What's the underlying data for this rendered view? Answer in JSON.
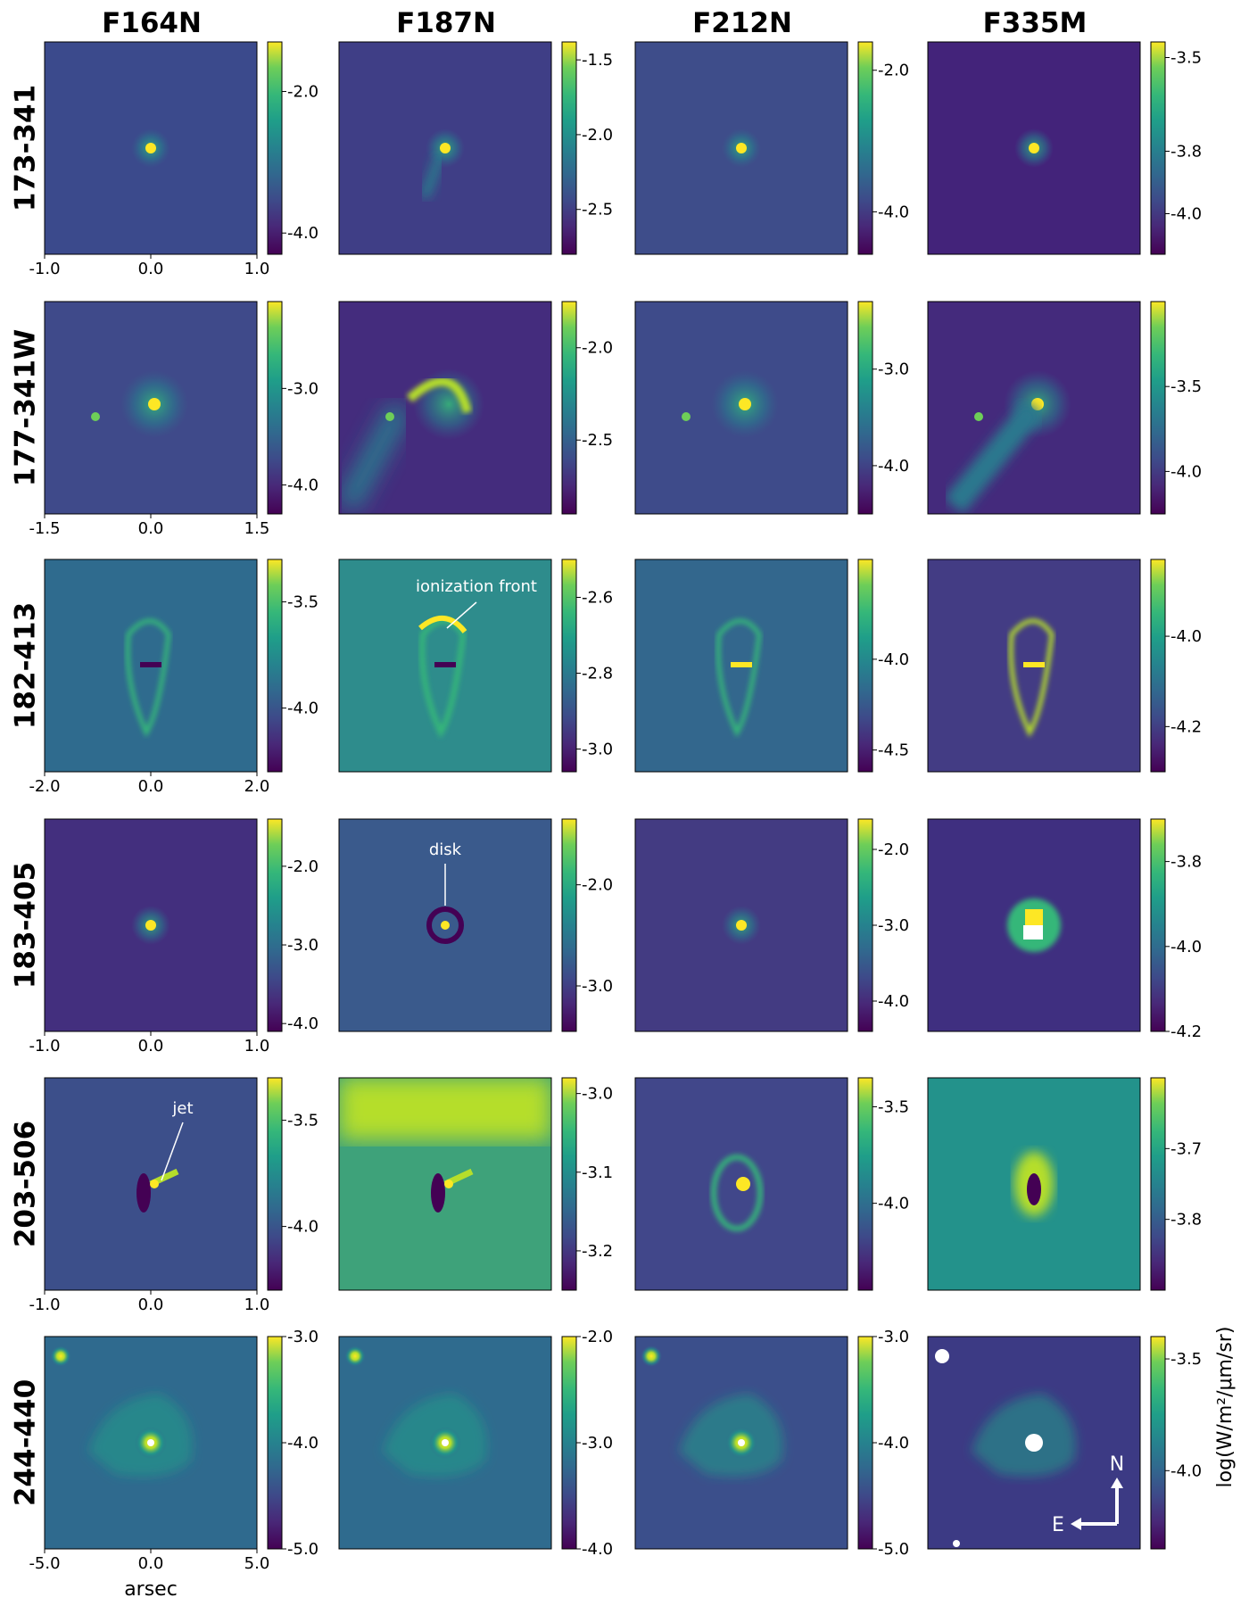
{
  "colorbar_label": "log(W/m²/μm/sr)",
  "x_axis_label": "arsec",
  "compass": {
    "north": "N",
    "east": "E"
  },
  "chart_data": {
    "type": "heatmap",
    "columns": [
      "F164N",
      "F187N",
      "F212N",
      "F335M"
    ],
    "rows": [
      {
        "name": "173-341",
        "xticks": [
          "-1.0",
          "0.0",
          "1.0"
        ],
        "panels": [
          {
            "filter": "F164N",
            "colorbar_ticks": [
              "-2.0",
              "-4.0"
            ],
            "range": [
              -4.3,
              -1.3
            ]
          },
          {
            "filter": "F187N",
            "colorbar_ticks": [
              "-1.5",
              "-2.0",
              "-2.5"
            ],
            "range": [
              -2.8,
              -1.38
            ]
          },
          {
            "filter": "F212N",
            "colorbar_ticks": [
              "-2.0",
              "-4.0"
            ],
            "range": [
              -4.6,
              -1.6
            ]
          },
          {
            "filter": "F335M",
            "colorbar_ticks": [
              "-3.5",
              "-3.8",
              "-4.0"
            ],
            "range": [
              -4.13,
              -3.45
            ]
          }
        ]
      },
      {
        "name": "177-341W",
        "xticks": [
          "-1.5",
          "0.0",
          "1.5"
        ],
        "panels": [
          {
            "filter": "F164N",
            "colorbar_ticks": [
              "-3.0",
              "-4.0"
            ],
            "range": [
              -4.3,
              -2.1
            ]
          },
          {
            "filter": "F187N",
            "colorbar_ticks": [
              "-2.0",
              "-2.5"
            ],
            "range": [
              -2.9,
              -1.75
            ]
          },
          {
            "filter": "F212N",
            "colorbar_ticks": [
              "-3.0",
              "-4.0"
            ],
            "range": [
              -4.5,
              -2.3
            ]
          },
          {
            "filter": "F335M",
            "colorbar_ticks": [
              "-3.5",
              "-4.0"
            ],
            "range": [
              -4.25,
              -3.0
            ]
          }
        ]
      },
      {
        "name": "182-413",
        "xticks": [
          "-2.0",
          "0.0",
          "2.0"
        ],
        "panels": [
          {
            "filter": "F164N",
            "colorbar_ticks": [
              "-3.5",
              "-4.0"
            ],
            "range": [
              -4.3,
              -3.3
            ]
          },
          {
            "filter": "F187N",
            "colorbar_ticks": [
              "-2.6",
              "-2.8",
              "-3.0"
            ],
            "range": [
              -3.06,
              -2.5
            ]
          },
          {
            "filter": "F212N",
            "colorbar_ticks": [
              "-4.0",
              "-4.5"
            ],
            "range": [
              -4.62,
              -3.45
            ]
          },
          {
            "filter": "F335M",
            "colorbar_ticks": [
              "-4.0",
              "-4.2"
            ],
            "range": [
              -4.3,
              -3.83
            ]
          }
        ],
        "annotation": {
          "panel": "F187N",
          "text": "ionization front"
        }
      },
      {
        "name": "183-405",
        "xticks": [
          "-1.0",
          "0.0",
          "1.0"
        ],
        "panels": [
          {
            "filter": "F164N",
            "colorbar_ticks": [
              "-2.0",
              "-3.0",
              "-4.0"
            ],
            "range": [
              -4.1,
              -1.4
            ]
          },
          {
            "filter": "F187N",
            "colorbar_ticks": [
              "-2.0",
              "-3.0"
            ],
            "range": [
              -3.45,
              -1.35
            ]
          },
          {
            "filter": "F212N",
            "colorbar_ticks": [
              "-2.0",
              "-3.0",
              "-4.0"
            ],
            "range": [
              -4.4,
              -1.6
            ]
          },
          {
            "filter": "F335M",
            "colorbar_ticks": [
              "-3.8",
              "-4.0",
              "-4.2"
            ],
            "range": [
              -4.2,
              -3.7
            ]
          }
        ],
        "annotation": {
          "panel": "F187N",
          "text": "disk"
        }
      },
      {
        "name": "203-506",
        "xticks": [
          "-1.0",
          "0.0",
          "1.0"
        ],
        "panels": [
          {
            "filter": "F164N",
            "colorbar_ticks": [
              "-3.5",
              "-4.0"
            ],
            "range": [
              -4.3,
              -3.3
            ]
          },
          {
            "filter": "F187N",
            "colorbar_ticks": [
              "-3.0",
              "-3.1",
              "-3.2"
            ],
            "range": [
              -3.25,
              -2.98
            ]
          },
          {
            "filter": "F212N",
            "colorbar_ticks": [
              "-3.5",
              "-4.0"
            ],
            "range": [
              -4.45,
              -3.35
            ]
          },
          {
            "filter": "F335M",
            "colorbar_ticks": [
              "-3.7",
              "-3.8"
            ],
            "range": [
              -3.9,
              -3.6
            ]
          }
        ],
        "annotation": {
          "panel": "F164N",
          "text": "jet"
        }
      },
      {
        "name": "244-440",
        "xticks": [
          "-5.0",
          "0.0",
          "5.0"
        ],
        "panels": [
          {
            "filter": "F164N",
            "colorbar_ticks": [
              "-3.0",
              "-4.0",
              "-5.0"
            ],
            "range": [
              -5.0,
              -3.0
            ]
          },
          {
            "filter": "F187N",
            "colorbar_ticks": [
              "-2.0",
              "-3.0",
              "-4.0"
            ],
            "range": [
              -4.0,
              -2.0
            ]
          },
          {
            "filter": "F212N",
            "colorbar_ticks": [
              "-3.0",
              "-4.0",
              "-5.0"
            ],
            "range": [
              -5.0,
              -3.0
            ]
          },
          {
            "filter": "F335M",
            "colorbar_ticks": [
              "-3.5",
              "-4.0"
            ],
            "range": [
              -4.35,
              -3.4
            ]
          }
        ]
      }
    ]
  }
}
